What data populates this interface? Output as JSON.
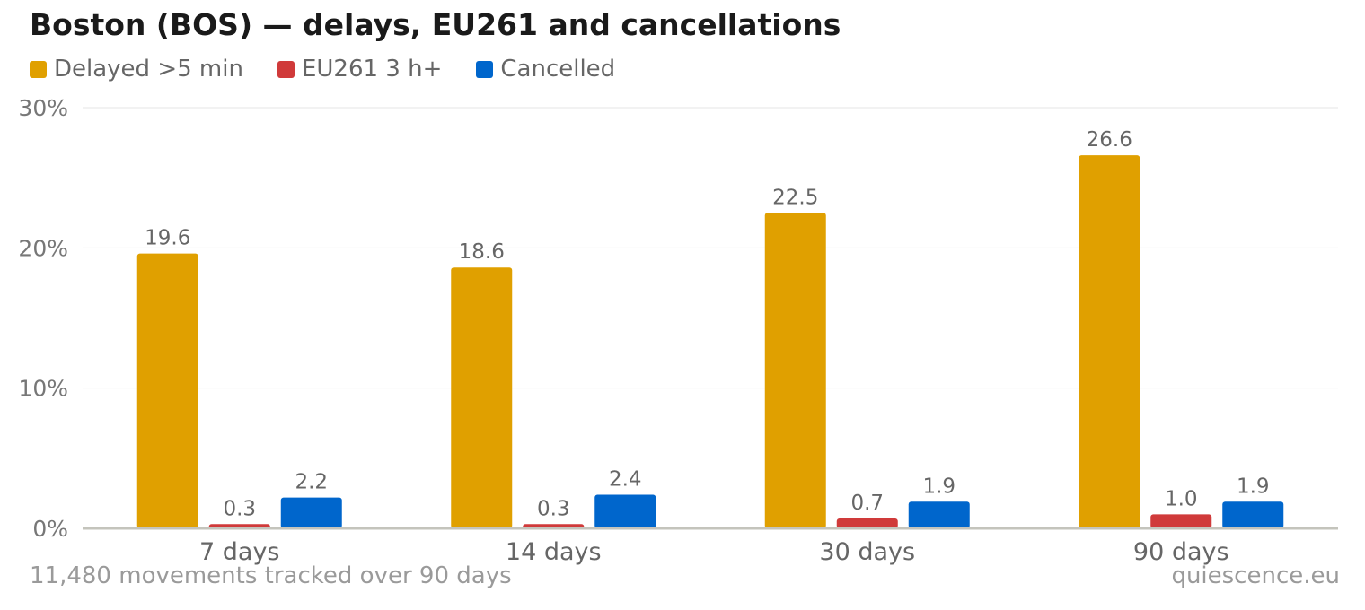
{
  "chart_data": {
    "type": "bar",
    "title": "Boston (BOS) — delays, EU261 and cancellations",
    "categories": [
      "7 days",
      "14 days",
      "30 days",
      "90 days"
    ],
    "series": [
      {
        "name": "Delayed >5 min",
        "color": "#E0A000",
        "values": [
          19.6,
          18.6,
          22.5,
          26.6
        ],
        "labels": [
          "19.6",
          "18.6",
          "22.5",
          "26.6"
        ]
      },
      {
        "name": "EU261 3 h+",
        "color": "#D03A3A",
        "values": [
          0.3,
          0.3,
          0.7,
          1.0
        ],
        "labels": [
          "0.3",
          "0.3",
          "0.7",
          "1.0"
        ]
      },
      {
        "name": "Cancelled",
        "color": "#0066CC",
        "values": [
          2.2,
          2.4,
          1.9,
          1.9
        ],
        "labels": [
          "2.2",
          "2.4",
          "1.9",
          "1.9"
        ]
      }
    ],
    "ylim": [
      0,
      30
    ],
    "yticks": [
      0,
      10,
      20,
      30
    ],
    "ytick_labels": [
      "0%",
      "10%",
      "20%",
      "30%"
    ],
    "xlabel": "",
    "ylabel": "",
    "grid": true,
    "legend_position": "top-left"
  },
  "footer": {
    "note": "11,480 movements tracked over 90 days",
    "brand": "quiescence.eu"
  }
}
